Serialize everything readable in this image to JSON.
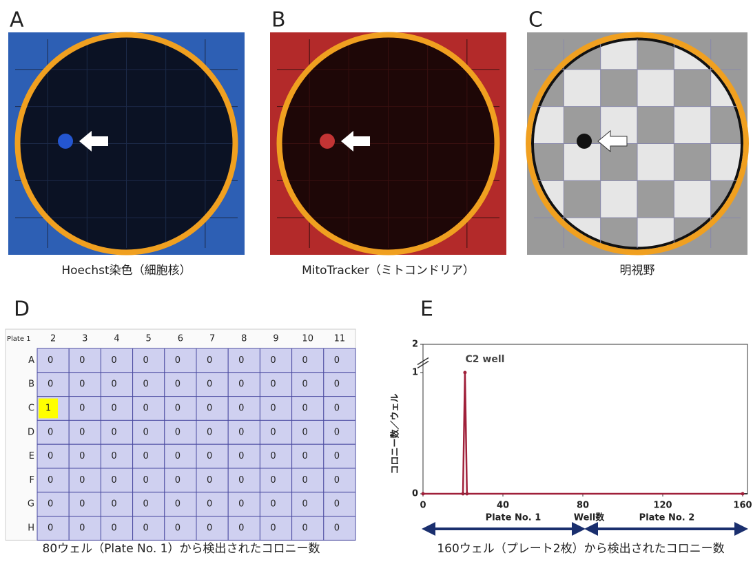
{
  "panels": [
    {
      "label": "A",
      "caption": "Hoechst染色（細胞核）"
    },
    {
      "label": "B",
      "caption": "MitoTracker（ミトコンドリア）"
    },
    {
      "label": "C",
      "caption": "明視野"
    }
  ],
  "table": {
    "label": "D",
    "corner": "Plate 1",
    "columns": [
      2,
      3,
      4,
      5,
      6,
      7,
      8,
      9,
      10,
      11
    ],
    "rows": [
      {
        "label": "A",
        "cells": [
          0,
          0,
          0,
          0,
          0,
          0,
          0,
          0,
          0,
          0
        ]
      },
      {
        "label": "B",
        "cells": [
          0,
          0,
          0,
          0,
          0,
          0,
          0,
          0,
          0,
          0
        ]
      },
      {
        "label": "C",
        "cells": [
          1,
          0,
          0,
          0,
          0,
          0,
          0,
          0,
          0,
          0
        ]
      },
      {
        "label": "D",
        "cells": [
          0,
          0,
          0,
          0,
          0,
          0,
          0,
          0,
          0,
          0
        ]
      },
      {
        "label": "E",
        "cells": [
          0,
          0,
          0,
          0,
          0,
          0,
          0,
          0,
          0,
          0
        ]
      },
      {
        "label": "F",
        "cells": [
          0,
          0,
          0,
          0,
          0,
          0,
          0,
          0,
          0,
          0
        ]
      },
      {
        "label": "G",
        "cells": [
          0,
          0,
          0,
          0,
          0,
          0,
          0,
          0,
          0,
          0
        ]
      },
      {
        "label": "H",
        "cells": [
          0,
          0,
          0,
          0,
          0,
          0,
          0,
          0,
          0,
          0
        ]
      }
    ],
    "highlight_color": "#ffff00",
    "caption": "80ウェル（Plate No. 1）から検出されたコロニー数"
  },
  "chart_data": {
    "type": "line",
    "label": "E",
    "x": [
      0,
      20,
      21,
      22,
      160
    ],
    "series": [
      {
        "color": "#a0203a",
        "values": [
          0,
          0,
          1,
          0,
          0
        ]
      }
    ],
    "xlim": [
      0,
      160
    ],
    "xticks": [
      0,
      40,
      80,
      120,
      160
    ],
    "ylim": [
      0,
      2
    ],
    "yticks": [
      0,
      1,
      2
    ],
    "y_break": [
      1,
      2
    ],
    "y_label": "コロニー数／ウェル",
    "x_label": "Well数",
    "annotations": [
      "C2 well",
      "Plate No. 1",
      "Plate No. 2"
    ],
    "caption": "160ウェル（プレート2枚）から検出されたコロニー数"
  }
}
